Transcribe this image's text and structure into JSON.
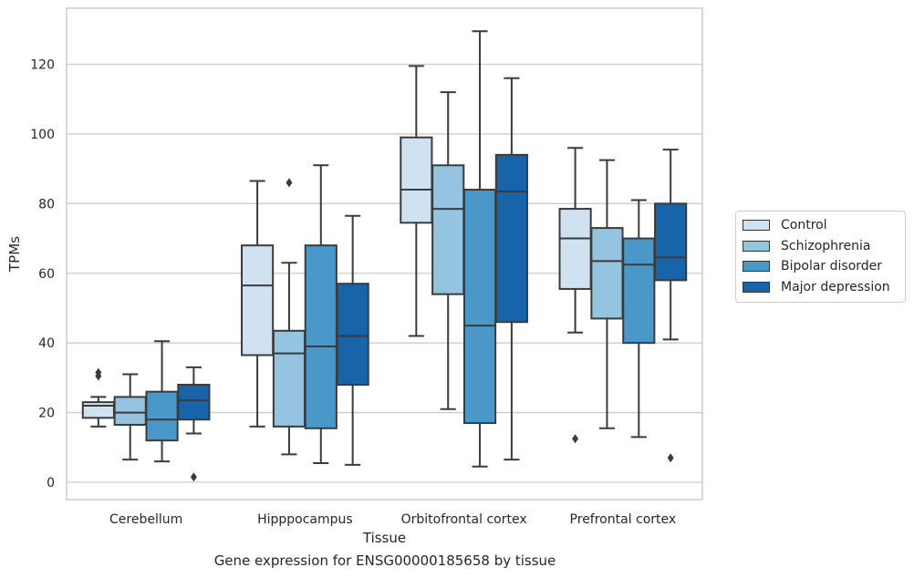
{
  "chart_data": {
    "type": "box",
    "title": "",
    "xlabel": "Tissue",
    "ylabel": "TPMs",
    "ylim": [
      -5,
      136
    ],
    "yticks": [
      0,
      20,
      40,
      60,
      80,
      100,
      120
    ],
    "categories": [
      "Cerebellum",
      "Hipppocampus",
      "Orbitofrontal cortex",
      "Prefrontal cortex"
    ],
    "grid": "horizontal",
    "legend_position": "right",
    "series": [
      {
        "name": "Control",
        "color": "#d0e1f2",
        "boxes": [
          {
            "q1": 18.5,
            "median": 22.0,
            "q3": 23.0,
            "whisker_low": 16.0,
            "whisker_high": 24.5,
            "outliers": [
              30.5,
              31.5
            ]
          },
          {
            "q1": 36.5,
            "median": 56.5,
            "q3": 68.0,
            "whisker_low": 16.0,
            "whisker_high": 86.5,
            "outliers": []
          },
          {
            "q1": 74.5,
            "median": 84.0,
            "q3": 99.0,
            "whisker_low": 42.0,
            "whisker_high": 119.5,
            "outliers": []
          },
          {
            "q1": 55.5,
            "median": 70.0,
            "q3": 78.5,
            "whisker_low": 43.0,
            "whisker_high": 96.0,
            "outliers": [
              12.5
            ]
          }
        ]
      },
      {
        "name": "Schizophrenia",
        "color": "#94c4df",
        "boxes": [
          {
            "q1": 16.5,
            "median": 20.0,
            "q3": 24.5,
            "whisker_low": 6.5,
            "whisker_high": 31.0,
            "outliers": []
          },
          {
            "q1": 16.0,
            "median": 37.0,
            "q3": 43.5,
            "whisker_low": 8.0,
            "whisker_high": 63.0,
            "outliers": [
              86.0
            ]
          },
          {
            "q1": 54.0,
            "median": 78.5,
            "q3": 91.0,
            "whisker_low": 21.0,
            "whisker_high": 112.0,
            "outliers": []
          },
          {
            "q1": 47.0,
            "median": 63.5,
            "q3": 73.0,
            "whisker_low": 15.5,
            "whisker_high": 92.5,
            "outliers": []
          }
        ]
      },
      {
        "name": "Bipolar disorder",
        "color": "#4a98c9",
        "boxes": [
          {
            "q1": 12.0,
            "median": 18.0,
            "q3": 26.0,
            "whisker_low": 6.0,
            "whisker_high": 40.5,
            "outliers": []
          },
          {
            "q1": 15.5,
            "median": 39.0,
            "q3": 68.0,
            "whisker_low": 5.5,
            "whisker_high": 91.0,
            "outliers": []
          },
          {
            "q1": 17.0,
            "median": 45.0,
            "q3": 84.0,
            "whisker_low": 4.5,
            "whisker_high": 129.5,
            "outliers": []
          },
          {
            "q1": 40.0,
            "median": 62.5,
            "q3": 70.0,
            "whisker_low": 13.0,
            "whisker_high": 81.0,
            "outliers": []
          }
        ]
      },
      {
        "name": "Major depression",
        "color": "#1764ab",
        "boxes": [
          {
            "q1": 18.0,
            "median": 23.5,
            "q3": 28.0,
            "whisker_low": 14.0,
            "whisker_high": 33.0,
            "outliers": [
              1.5
            ]
          },
          {
            "q1": 28.0,
            "median": 42.0,
            "q3": 57.0,
            "whisker_low": 5.0,
            "whisker_high": 76.5,
            "outliers": []
          },
          {
            "q1": 46.0,
            "median": 83.5,
            "q3": 94.0,
            "whisker_low": 6.5,
            "whisker_high": 116.0,
            "outliers": []
          },
          {
            "q1": 58.0,
            "median": 64.5,
            "q3": 80.0,
            "whisker_low": 41.0,
            "whisker_high": 95.5,
            "outliers": [
              7.0
            ]
          }
        ]
      }
    ]
  },
  "caption": "Gene expression for ENSG00000185658 by tissue"
}
